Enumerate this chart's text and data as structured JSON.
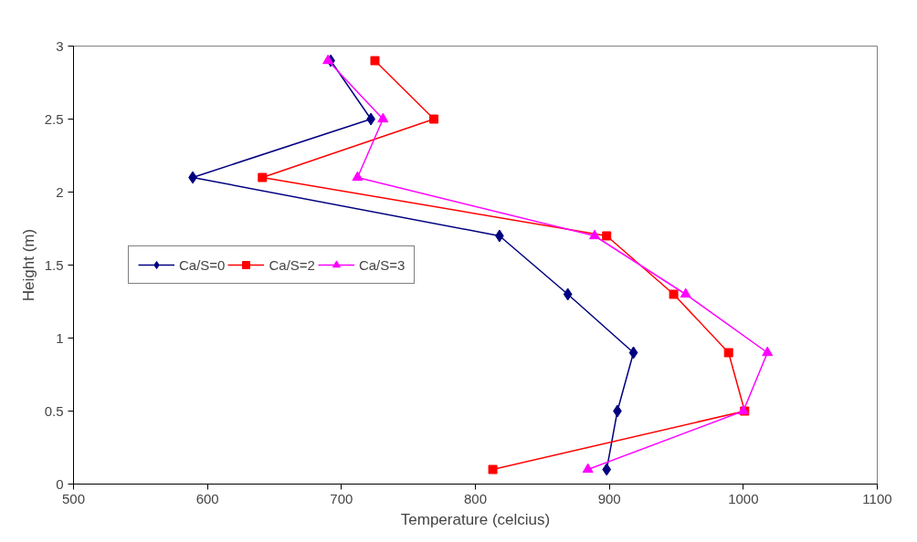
{
  "chart_data": {
    "type": "line",
    "xlabel": "Temperature (celcius)",
    "ylabel": "Height (m)",
    "xlim": [
      500,
      1100
    ],
    "xticks": [
      500,
      600,
      700,
      800,
      900,
      1000,
      1100
    ],
    "ylim": [
      0,
      3
    ],
    "yticks": [
      0,
      {
        "value": 0.5,
        "label": "0.5"
      },
      1,
      {
        "value": 1.5,
        "label": "1.5"
      },
      2,
      {
        "value": 2.5,
        "label": "2.5"
      },
      3
    ],
    "grid": false,
    "legend": "left",
    "line_style": "solid",
    "series": [
      {
        "name": "Ca/S=0",
        "color": "#000080",
        "marker": "diamond",
        "x": [
          898,
          906,
          918,
          869,
          818,
          589,
          722,
          692
        ],
        "values": [
          0.1,
          0.5,
          0.9,
          1.3,
          1.7,
          2.1,
          2.5,
          2.9
        ]
      },
      {
        "name": "Ca/S=2",
        "color": "#ff0000",
        "marker": "square",
        "x": [
          813,
          1001,
          989,
          948,
          898,
          641,
          769,
          725
        ],
        "values": [
          0.1,
          0.5,
          0.9,
          1.3,
          1.7,
          2.1,
          2.5,
          2.9
        ]
      },
      {
        "name": "Ca/S=3",
        "color": "#ff00ff",
        "marker": "triangle",
        "x": [
          884,
          1000,
          1018,
          957,
          889,
          712,
          731,
          690
        ],
        "values": [
          0.1,
          0.5,
          0.9,
          1.3,
          1.7,
          2.1,
          2.5,
          2.9
        ]
      }
    ]
  }
}
